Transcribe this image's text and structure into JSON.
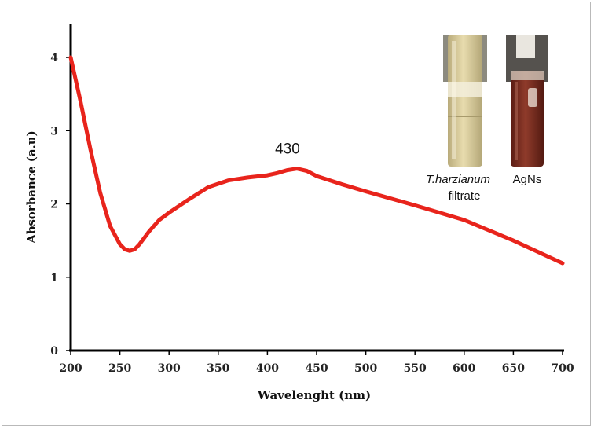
{
  "chart_data": {
    "type": "line",
    "title": "",
    "xlabel": "Wavelenght (nm)",
    "ylabel": "Absorbance (a.u)",
    "xlim": [
      200,
      700
    ],
    "ylim": [
      0,
      4.5
    ],
    "x_ticks": [
      "200",
      "250",
      "300",
      "350",
      "400",
      "450",
      "500",
      "550",
      "600",
      "650",
      "700"
    ],
    "y_ticks": [
      "0",
      "1",
      "2",
      "3",
      "4"
    ],
    "grid": false,
    "series": [
      {
        "color": "#e8241c",
        "x": [
          200,
          210,
          220,
          230,
          240,
          250,
          255,
          260,
          265,
          270,
          280,
          290,
          300,
          320,
          340,
          360,
          380,
          400,
          410,
          420,
          430,
          440,
          450,
          475,
          500,
          550,
          600,
          650,
          700
        ],
        "y": [
          4.0,
          3.4,
          2.75,
          2.15,
          1.7,
          1.45,
          1.38,
          1.36,
          1.38,
          1.45,
          1.63,
          1.78,
          1.88,
          2.06,
          2.23,
          2.32,
          2.36,
          2.39,
          2.42,
          2.46,
          2.48,
          2.45,
          2.38,
          2.27,
          2.17,
          1.98,
          1.78,
          1.5,
          1.19
        ]
      }
    ],
    "annotations": [
      {
        "text": "430",
        "x": 430,
        "y": 2.48
      }
    ]
  },
  "inset_photos": [
    {
      "caption_line1": "T.harzianum",
      "caption_line2": "filtrate",
      "liquid_color": "#d9c98e",
      "glass_color": "#efe9cf"
    },
    {
      "caption_line1": "AgNs",
      "caption_line2": "",
      "liquid_color": "#7a2a1e",
      "glass_color": "#c9b7a4"
    }
  ]
}
